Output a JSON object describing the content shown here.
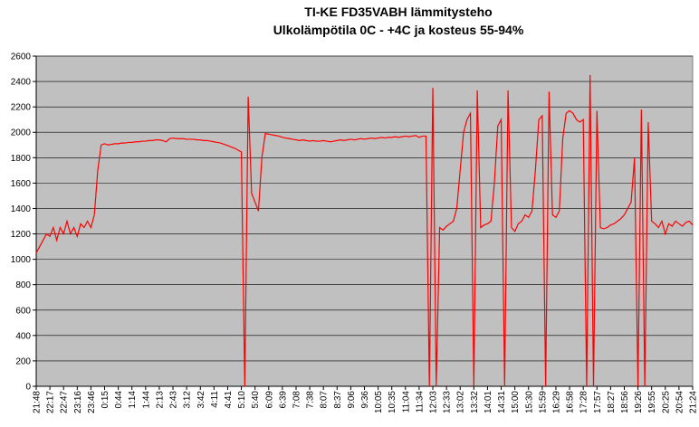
{
  "chart_data": {
    "type": "line",
    "title": "TI-KE FD35VABH lämmitysteho",
    "subtitle": "Ulkolämpötila  0C - +4C ja kosteus 55-94%",
    "color": "#ff0000",
    "plot_background": "#c0c0c0",
    "grid": true,
    "ylim": [
      0,
      2600
    ],
    "yticks": [
      0,
      200,
      400,
      600,
      800,
      1000,
      1200,
      1400,
      1600,
      1800,
      2000,
      2200,
      2400,
      2600
    ],
    "categories": [
      "21:48",
      null,
      null,
      null,
      "22:17",
      null,
      null,
      null,
      "22:47",
      null,
      null,
      null,
      "23:16",
      null,
      null,
      null,
      "23:46",
      null,
      null,
      null,
      "0:15",
      null,
      null,
      null,
      "0:44",
      null,
      null,
      null,
      "1:14",
      null,
      null,
      null,
      "1:44",
      null,
      null,
      null,
      "2:13",
      null,
      null,
      null,
      "2:43",
      null,
      null,
      null,
      "3:12",
      null,
      null,
      null,
      "3:42",
      null,
      null,
      null,
      "4:11",
      null,
      null,
      null,
      "4:41",
      null,
      null,
      null,
      "5:10",
      null,
      null,
      null,
      "5:40",
      null,
      null,
      null,
      "6:09",
      null,
      null,
      null,
      "6:39",
      null,
      null,
      null,
      "7:08",
      null,
      null,
      null,
      "7:38",
      null,
      null,
      null,
      "8:07",
      null,
      null,
      null,
      "8:37",
      null,
      null,
      null,
      "9:06",
      null,
      null,
      null,
      "9:36",
      null,
      null,
      null,
      "10:05",
      null,
      null,
      null,
      "10:35",
      null,
      null,
      null,
      "11:04",
      null,
      null,
      null,
      "11:34",
      null,
      null,
      null,
      "12:03",
      null,
      null,
      null,
      "12:33",
      null,
      null,
      null,
      "13:02",
      null,
      null,
      null,
      "13:32",
      null,
      null,
      null,
      "14:01",
      null,
      null,
      null,
      "14:31",
      null,
      null,
      null,
      "15:00",
      null,
      null,
      null,
      "15:30",
      null,
      null,
      null,
      "15:59",
      null,
      null,
      null,
      "16:29",
      null,
      null,
      null,
      "16:58",
      null,
      null,
      null,
      "17:28",
      null,
      null,
      null,
      "17:57",
      null,
      null,
      null,
      "18:27",
      null,
      null,
      null,
      "18:56",
      null,
      null,
      null,
      "19:26",
      null,
      null,
      null,
      "19:55",
      null,
      null,
      null,
      "20:25",
      null,
      null,
      null,
      "20:54",
      null,
      null,
      null,
      "21:24"
    ],
    "values": [
      1050,
      1100,
      1150,
      1200,
      1180,
      1250,
      1150,
      1250,
      1200,
      1300,
      1200,
      1250,
      1180,
      1280,
      1250,
      1300,
      1250,
      1350,
      1700,
      1900,
      1910,
      1900,
      1905,
      1910,
      1910,
      1915,
      1915,
      1920,
      1920,
      1925,
      1925,
      1930,
      1930,
      1935,
      1935,
      1940,
      1940,
      1935,
      1925,
      1950,
      1955,
      1950,
      1950,
      1950,
      1945,
      1945,
      1945,
      1940,
      1940,
      1935,
      1935,
      1930,
      1925,
      1920,
      1915,
      1905,
      1895,
      1885,
      1875,
      1860,
      1845,
      0,
      2280,
      1520,
      1450,
      1380,
      1800,
      1990,
      1985,
      1980,
      1975,
      1970,
      1960,
      1955,
      1950,
      1945,
      1940,
      1935,
      1940,
      1935,
      1930,
      1935,
      1930,
      1930,
      1935,
      1930,
      1925,
      1930,
      1935,
      1940,
      1935,
      1940,
      1945,
      1940,
      1945,
      1950,
      1945,
      1950,
      1955,
      1950,
      1955,
      1960,
      1955,
      1960,
      1960,
      1965,
      1960,
      1965,
      1970,
      1965,
      1970,
      1975,
      1960,
      1970,
      1970,
      0,
      2350,
      0,
      1250,
      1230,
      1260,
      1280,
      1300,
      1400,
      1700,
      2000,
      2100,
      2150,
      0,
      2330,
      1250,
      1270,
      1280,
      1300,
      1600,
      2050,
      2100,
      0,
      2330,
      1250,
      1220,
      1280,
      1300,
      1350,
      1330,
      1380,
      1700,
      2100,
      2130,
      0,
      2320,
      1350,
      1330,
      1380,
      1950,
      2150,
      2170,
      2150,
      2100,
      2080,
      2100,
      0,
      2450,
      0,
      2170,
      1250,
      1240,
      1250,
      1270,
      1280,
      1300,
      1320,
      1350,
      1400,
      1450,
      1800,
      0,
      2180,
      0,
      2080,
      1300,
      1280,
      1250,
      1300,
      1200,
      1280,
      1260,
      1300,
      1280,
      1260,
      1290,
      1300,
      1270
    ]
  }
}
